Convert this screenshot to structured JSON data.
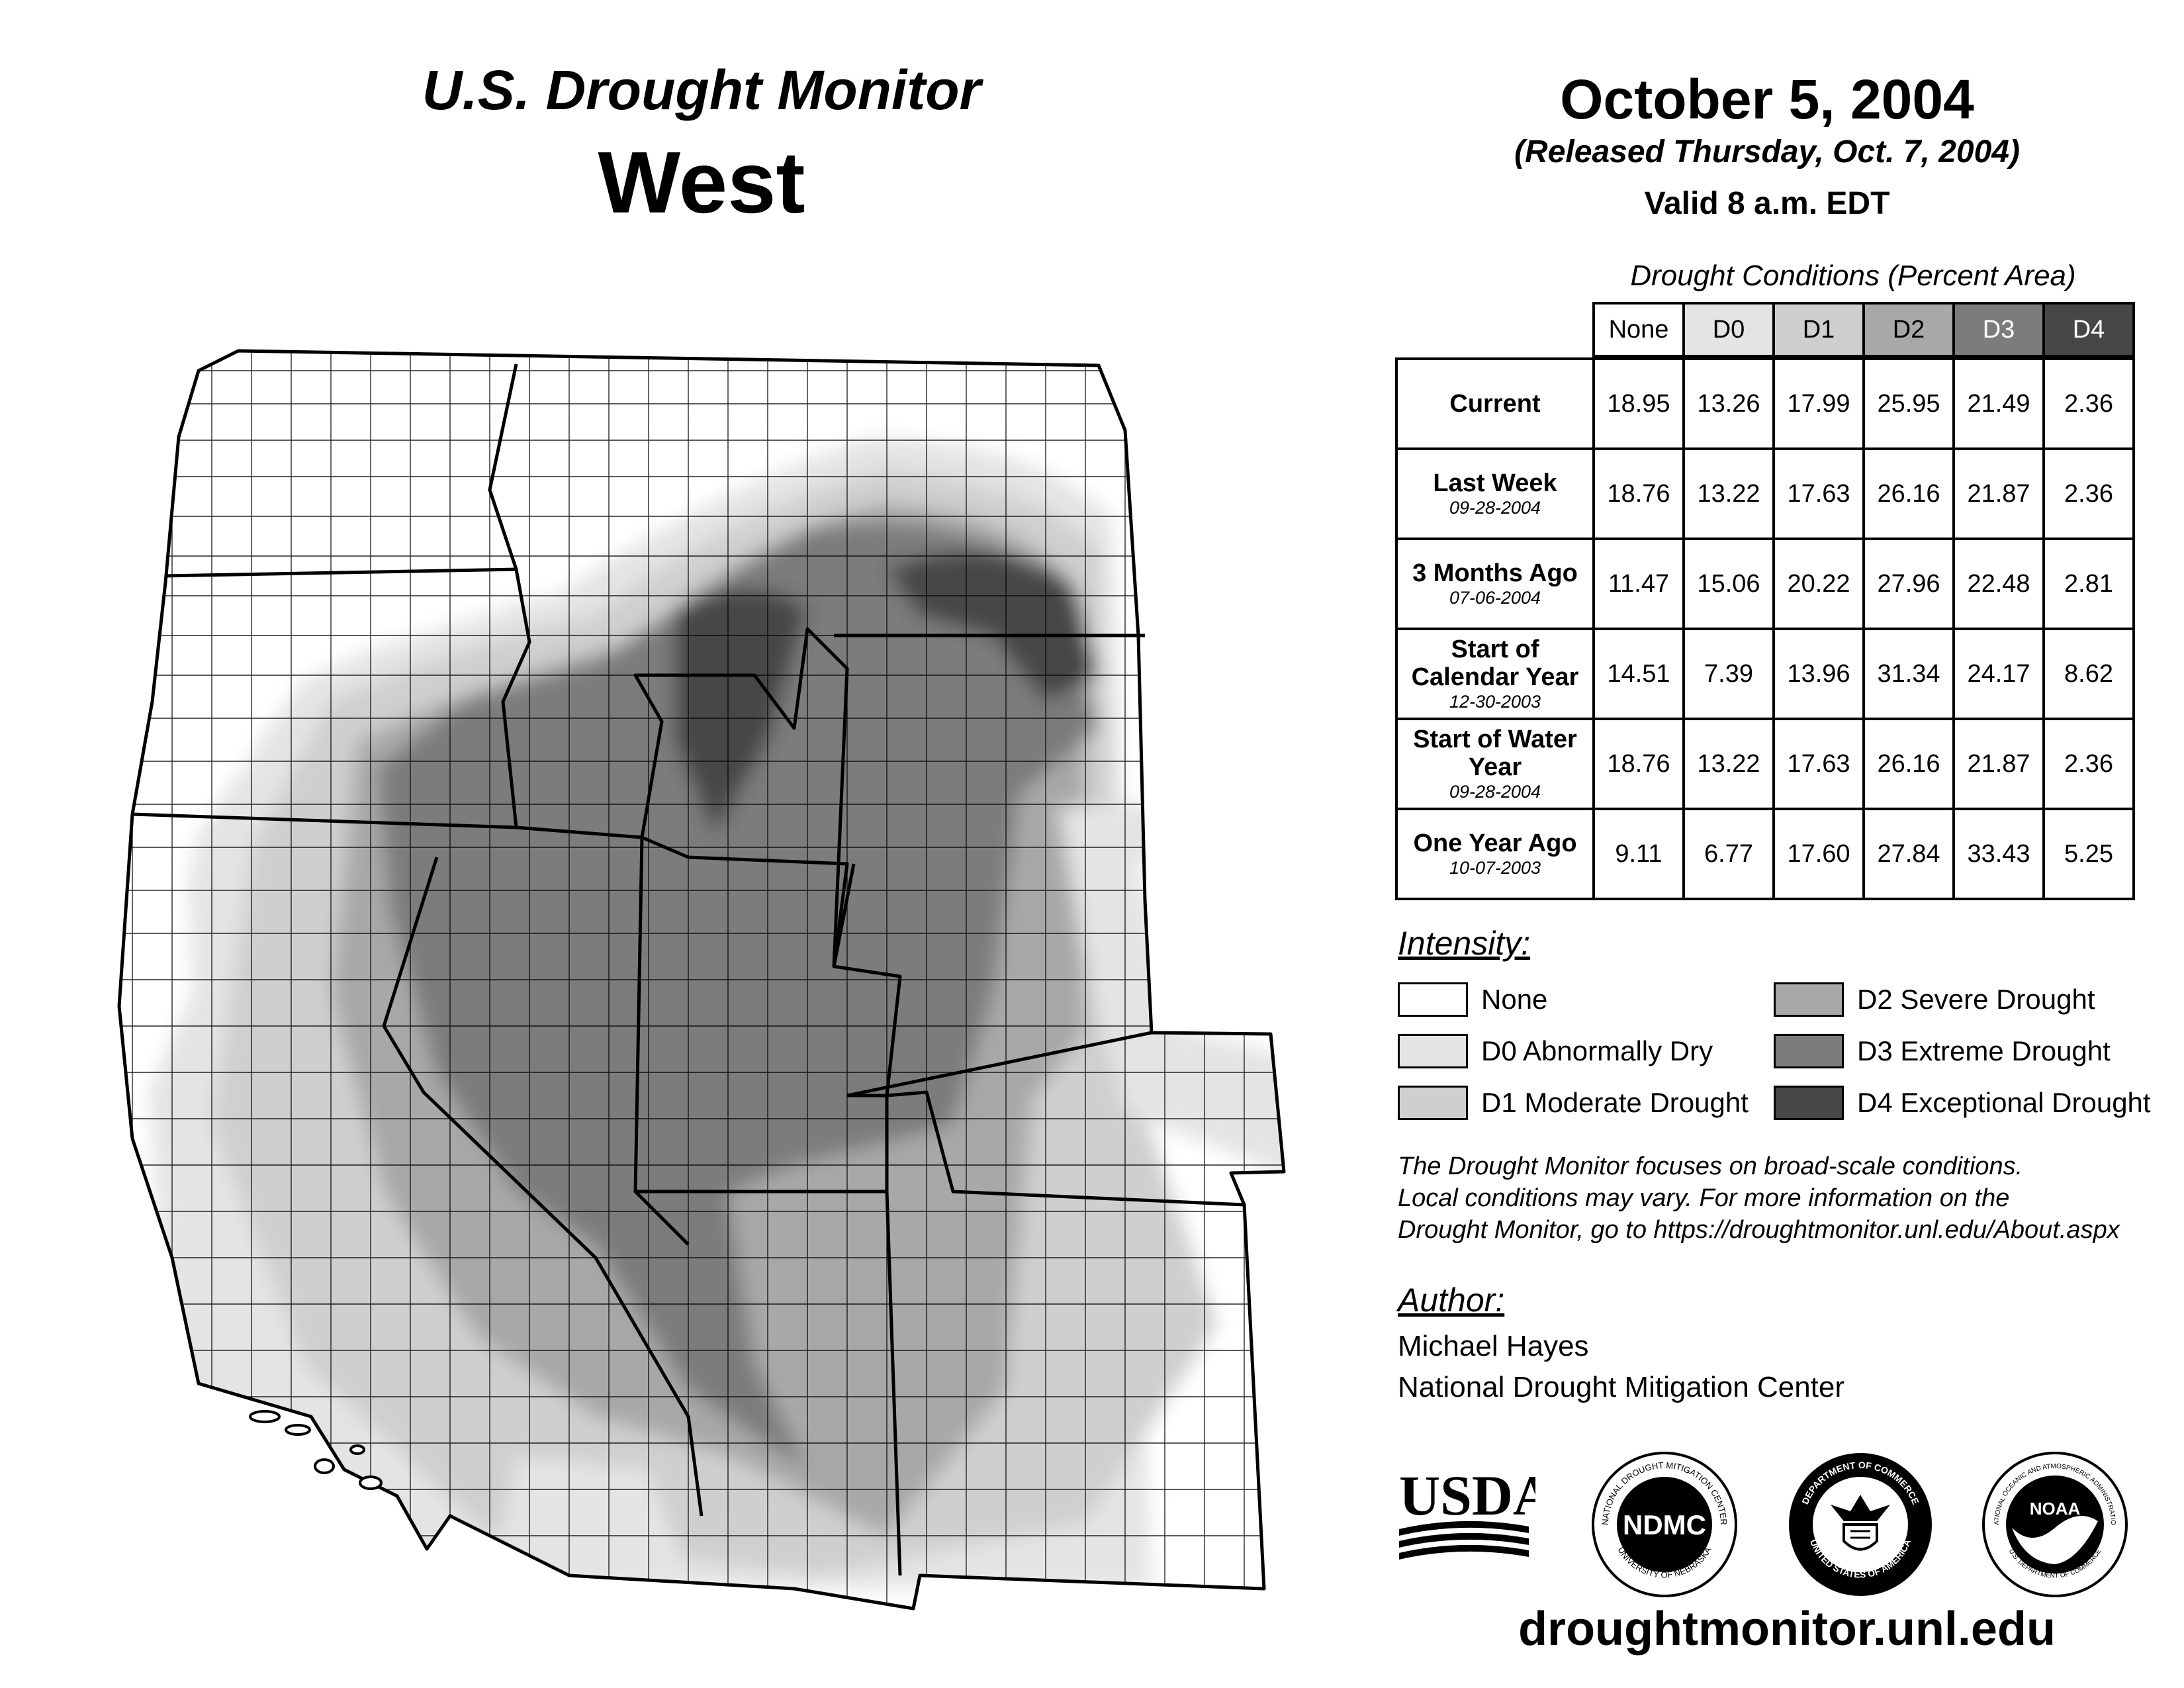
{
  "header": {
    "title_line1": "U.S. Drought Monitor",
    "title_line2": "West",
    "date": "October 5, 2004",
    "released": "(Released Thursday, Oct. 7, 2004)",
    "valid": "Valid 8 a.m. EDT"
  },
  "table": {
    "title": "Drought Conditions (Percent Area)",
    "columns": [
      "None",
      "D0",
      "D1",
      "D2",
      "D3",
      "D4"
    ],
    "column_colors": [
      "#ffffff",
      "#e4e4e4",
      "#cfcfcf",
      "#a8a8a8",
      "#7c7c7c",
      "#474747"
    ],
    "rows": [
      {
        "label": "Current",
        "sub": "",
        "values": [
          "18.95",
          "13.26",
          "17.99",
          "25.95",
          "21.49",
          "2.36"
        ]
      },
      {
        "label": "Last Week",
        "sub": "09-28-2004",
        "values": [
          "18.76",
          "13.22",
          "17.63",
          "26.16",
          "21.87",
          "2.36"
        ]
      },
      {
        "label": "3 Months Ago",
        "sub": "07-06-2004",
        "values": [
          "11.47",
          "15.06",
          "20.22",
          "27.96",
          "22.48",
          "2.81"
        ]
      },
      {
        "label": "Start of Calendar Year",
        "sub": "12-30-2003",
        "values": [
          "14.51",
          "7.39",
          "13.96",
          "31.34",
          "24.17",
          "8.62"
        ]
      },
      {
        "label": "Start of Water Year",
        "sub": "09-28-2004",
        "values": [
          "18.76",
          "13.22",
          "17.63",
          "26.16",
          "21.87",
          "2.36"
        ]
      },
      {
        "label": "One Year Ago",
        "sub": "10-07-2003",
        "values": [
          "9.11",
          "6.77",
          "17.60",
          "27.84",
          "33.43",
          "5.25"
        ]
      }
    ]
  },
  "legend": {
    "heading": "Intensity:",
    "items": [
      {
        "label": "None",
        "color": "#ffffff"
      },
      {
        "label": "D0 Abnormally Dry",
        "color": "#e4e4e4"
      },
      {
        "label": "D1 Moderate Drought",
        "color": "#cfcfcf"
      },
      {
        "label": "D2 Severe Drought",
        "color": "#a8a8a8"
      },
      {
        "label": "D3 Extreme Drought",
        "color": "#7c7c7c"
      },
      {
        "label": "D4 Exceptional Drought",
        "color": "#474747"
      }
    ]
  },
  "note": {
    "line1": "The Drought Monitor focuses on broad-scale conditions.",
    "line2": "Local conditions may vary. For more information on the",
    "line3": "Drought Monitor, go to https://droughtmonitor.unl.edu/About.aspx"
  },
  "author": {
    "heading": "Author:",
    "name": "Michael Hayes",
    "org": "National Drought Mitigation Center"
  },
  "logos": {
    "usda": "USDA",
    "ndmc": "NDMC",
    "ndmc_ring_top": "NATIONAL DROUGHT MITIGATION CENTER",
    "ndmc_ring_bottom": "UNIVERSITY OF NEBRASKA",
    "doc_ring_top": "DEPARTMENT OF COMMERCE",
    "doc_ring_bottom": "UNITED STATES OF AMERICA",
    "noaa": "NOAA",
    "noaa_ring_top": "NATIONAL OCEANIC AND ATMOSPHERIC ADMINISTRATION",
    "noaa_ring_bottom": "U.S. DEPARTMENT OF COMMERCE"
  },
  "footer_url": "droughtmonitor.unl.edu"
}
